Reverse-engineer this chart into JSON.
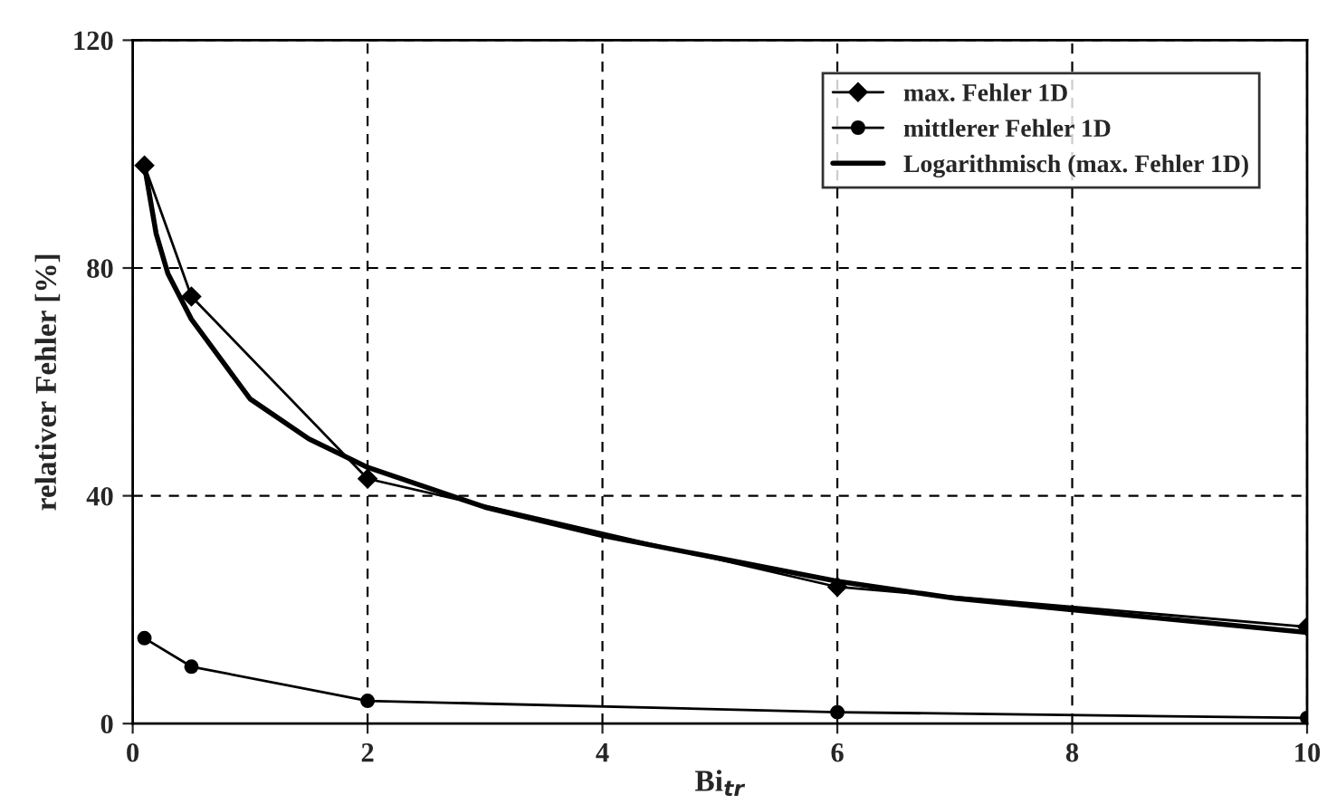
{
  "chart_data": {
    "type": "line",
    "xlabel": "Bi$_{tr}$",
    "ylabel": "relativer Fehler [%]",
    "xlim": [
      0,
      10
    ],
    "xticks": [
      0,
      2,
      4,
      6,
      8,
      10
    ],
    "ylim": [
      0,
      120
    ],
    "yticks": [
      0,
      40,
      80,
      120
    ],
    "grid": true,
    "legend": "top right",
    "series": [
      {
        "name": "max. Fehler 1D",
        "color": "#000000",
        "marker": "diamond",
        "x": [
          0.1,
          0.5,
          2,
          6,
          10
        ],
        "values": [
          98,
          75,
          43,
          24,
          17
        ]
      },
      {
        "name": "mittlerer Fehler 1D",
        "color": "#000000",
        "marker": "circle",
        "x": [
          0.1,
          0.5,
          2,
          6,
          10
        ],
        "values": [
          15,
          10,
          4,
          2,
          1
        ]
      },
      {
        "name": "Logarithmisch (max. Fehler 1D)",
        "color": "#000000",
        "marker": "none",
        "x": [
          0.1,
          0.2,
          0.3,
          0.5,
          0.75,
          1,
          1.5,
          2,
          3,
          4,
          5,
          6,
          7,
          8,
          9,
          10
        ],
        "values": [
          98,
          86,
          79,
          71,
          64,
          57,
          50,
          45,
          38,
          33,
          29,
          25,
          22,
          20,
          18,
          16
        ]
      }
    ]
  }
}
